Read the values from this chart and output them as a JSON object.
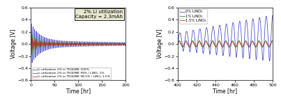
{
  "left": {
    "title": "2% Li utilization\nCapacity = 2.3mAh",
    "xlabel": "Time [hr]",
    "ylabel": "Voltage [V]",
    "xlim": [
      0,
      200
    ],
    "ylim": [
      -0.6,
      0.6
    ],
    "xticks": [
      0,
      50,
      100,
      150,
      200
    ],
    "yticks": [
      -0.6,
      -0.4,
      -0.2,
      0.0,
      0.2,
      0.4,
      0.6
    ],
    "legend": [
      "Li utilization 2% in TEGDME 100%",
      "Li utilization 2% in TEGDME 99% / LiNO₃ 1%",
      "Li utilization 2% in TEGDME 98.5% / LiNO₃ 1.5%"
    ],
    "colors": [
      "#4444cc",
      "#228822",
      "#cc2222"
    ],
    "bg_color": "#e8e8d0"
  },
  "right": {
    "xlabel": "Time [hr]",
    "ylabel": "Voltage [V]",
    "xlim": [
      400,
      500
    ],
    "ylim": [
      -0.6,
      0.6
    ],
    "xticks": [
      400,
      420,
      440,
      460,
      480,
      500
    ],
    "yticks": [
      -0.6,
      -0.4,
      -0.2,
      0.0,
      0.2,
      0.4,
      0.6
    ],
    "legend": [
      "0% LiNO₃",
      "1% LiNO₃",
      "1.5% LiNO₃"
    ],
    "colors": [
      "#4444cc",
      "#228822",
      "#cc2222"
    ]
  }
}
